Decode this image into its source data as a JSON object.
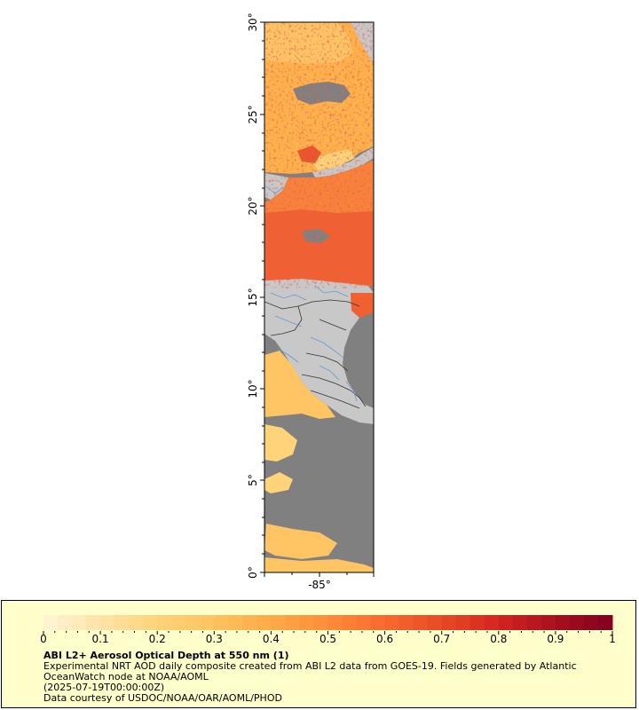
{
  "map": {
    "lat_labels": [
      "30°",
      "25°",
      "20°",
      "15°",
      "10°",
      "5°",
      "0°"
    ],
    "lon_labels": [
      "-85°"
    ],
    "colors": {
      "water_nodata": "#808080",
      "land": "#c8c8c8",
      "border": "#333333",
      "river": "#6699cc"
    }
  },
  "legend": {
    "title": "ABI L2+ Aerosol Optical Depth at 550 nm (1)",
    "description": "Experimental NRT AOD daily composite created from ABI L2 data from GOES-19. Fields generated by Atlantic OceanWatch node at NOAA/AOML",
    "time": "(2025-07-19T00:00:00Z)",
    "credit": "Data courtesy of USDOC/NOAA/OAR/AOML/PHOD",
    "tick_labels": [
      "0",
      "0.1",
      "0.2",
      "0.3",
      "0.4",
      "0.5",
      "0.6",
      "0.7",
      "0.8",
      "0.9",
      "1"
    ],
    "colormap_stops": [
      "#fff5d8",
      "#ffe3a6",
      "#ffd37a",
      "#ffc35e",
      "#ffaa48",
      "#ff8c3a",
      "#f86a2e",
      "#e84a26",
      "#d42420",
      "#a8101e",
      "#800020"
    ]
  }
}
